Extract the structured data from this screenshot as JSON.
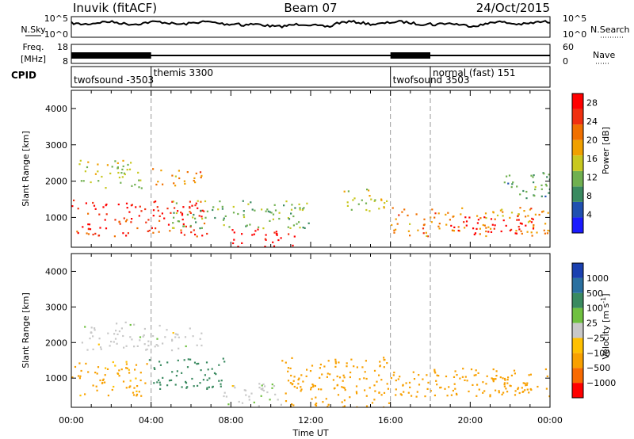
{
  "header": {
    "station": "Inuvik (fitACF)",
    "beam": "Beam 07",
    "date": "24/Oct/2015"
  },
  "panels": {
    "nsky_label": "N.Sky",
    "nsearch_label": "N.Search",
    "noise_ticks": [
      "10^5",
      "10^0"
    ],
    "freq_label_1": "Freq.",
    "freq_label_2": "[MHz]",
    "freq_ticks": [
      "18",
      "8"
    ],
    "nave_label": "Nave",
    "nave_ticks": [
      "60",
      "0"
    ],
    "cpid_label": "CPID",
    "cpid_segments": [
      {
        "name": "twofsound -3503",
        "start": 0.0
      },
      {
        "name": "themis 3300",
        "start": 4.0
      },
      {
        "name": "twofsound 3503",
        "start": 16.0
      },
      {
        "name": "normal (fast) 151",
        "start": 18.0
      }
    ],
    "dashed_times": [
      4.0,
      16.0,
      18.0
    ]
  },
  "colors": {
    "power": [
      "#1a1aff",
      "#2050b0",
      "#3a8a60",
      "#70b050",
      "#c8c820",
      "#f0a000",
      "#f07000",
      "#f03010",
      "#ff0000"
    ],
    "velocity": [
      "#ff0000",
      "#f86a00",
      "#f8a000",
      "#ffc000",
      "#c8c8c8",
      "#6fc040",
      "#3a8a60",
      "#2a70a0",
      "#1a40b0"
    ]
  },
  "chart_data": [
    {
      "type": "heatmap",
      "title": "Power",
      "ylabel": "Slant Range [km]",
      "xlabel": "Time UT",
      "x_ticks": [
        "00:00",
        "04:00",
        "08:00",
        "12:00",
        "16:00",
        "20:00",
        "00:00"
      ],
      "xlim": [
        0,
        24
      ],
      "y_ticks": [
        1000,
        2000,
        3000,
        4000
      ],
      "ylim": [
        180,
        4500
      ],
      "colorbar": {
        "label": "Power [dB]",
        "ticks": [
          4,
          8,
          12,
          16,
          20,
          24,
          28
        ],
        "range": [
          0,
          30
        ]
      },
      "echo_regions": [
        {
          "t0": 0.0,
          "t1": 6.8,
          "r0": 500,
          "r1": 1500,
          "value": 26
        },
        {
          "t0": 0.3,
          "t1": 3.5,
          "r0": 1800,
          "r1": 2600,
          "value": 14
        },
        {
          "t0": 4.0,
          "t1": 6.5,
          "r0": 1900,
          "r1": 2400,
          "value": 20
        },
        {
          "t0": 5.0,
          "t1": 12.0,
          "r0": 700,
          "r1": 1500,
          "value": 12
        },
        {
          "t0": 8.0,
          "t1": 11.2,
          "r0": 200,
          "r1": 700,
          "value": 30
        },
        {
          "t0": 13.5,
          "t1": 16.0,
          "r0": 1200,
          "r1": 1800,
          "value": 14
        },
        {
          "t0": 16.0,
          "t1": 24.0,
          "r0": 500,
          "r1": 1300,
          "value": 20
        },
        {
          "t0": 19.0,
          "t1": 23.2,
          "r0": 550,
          "r1": 1050,
          "value": 30
        },
        {
          "t0": 21.5,
          "t1": 24.0,
          "r0": 1500,
          "r1": 2300,
          "value": 10
        }
      ]
    },
    {
      "type": "heatmap",
      "title": "Velocity",
      "ylabel": "Slant Range [km]",
      "xlabel": "Time UT",
      "x_ticks": [
        "00:00",
        "04:00",
        "08:00",
        "12:00",
        "16:00",
        "20:00",
        "00:00"
      ],
      "xlim": [
        0,
        24
      ],
      "y_ticks": [
        1000,
        2000,
        3000,
        4000
      ],
      "ylim": [
        180,
        4500
      ],
      "colorbar": {
        "label": "Velocity [m s^-1]",
        "ticks": [
          1000,
          500,
          100,
          25,
          -25,
          -100,
          -500,
          -1000
        ]
      },
      "echo_regions": [
        {
          "t0": 0.0,
          "t1": 3.8,
          "r0": 500,
          "r1": 1500,
          "value": -120
        },
        {
          "t0": 3.8,
          "t1": 7.8,
          "r0": 700,
          "r1": 1600,
          "value": 150
        },
        {
          "t0": 0.5,
          "t1": 3.5,
          "r0": 1800,
          "r1": 2600,
          "value": 0
        },
        {
          "t0": 3.5,
          "t1": 6.5,
          "r0": 1800,
          "r1": 2500,
          "value": 0
        },
        {
          "t0": 7.5,
          "t1": 10.5,
          "r0": 200,
          "r1": 900,
          "value": 0
        },
        {
          "t0": 10.5,
          "t1": 16.0,
          "r0": 200,
          "r1": 1600,
          "value": -150
        },
        {
          "t0": 16.0,
          "t1": 24.0,
          "r0": 500,
          "r1": 1300,
          "value": -150
        },
        {
          "t0": 20.0,
          "t1": 23.0,
          "r0": 600,
          "r1": 1100,
          "value": -400
        }
      ]
    }
  ]
}
